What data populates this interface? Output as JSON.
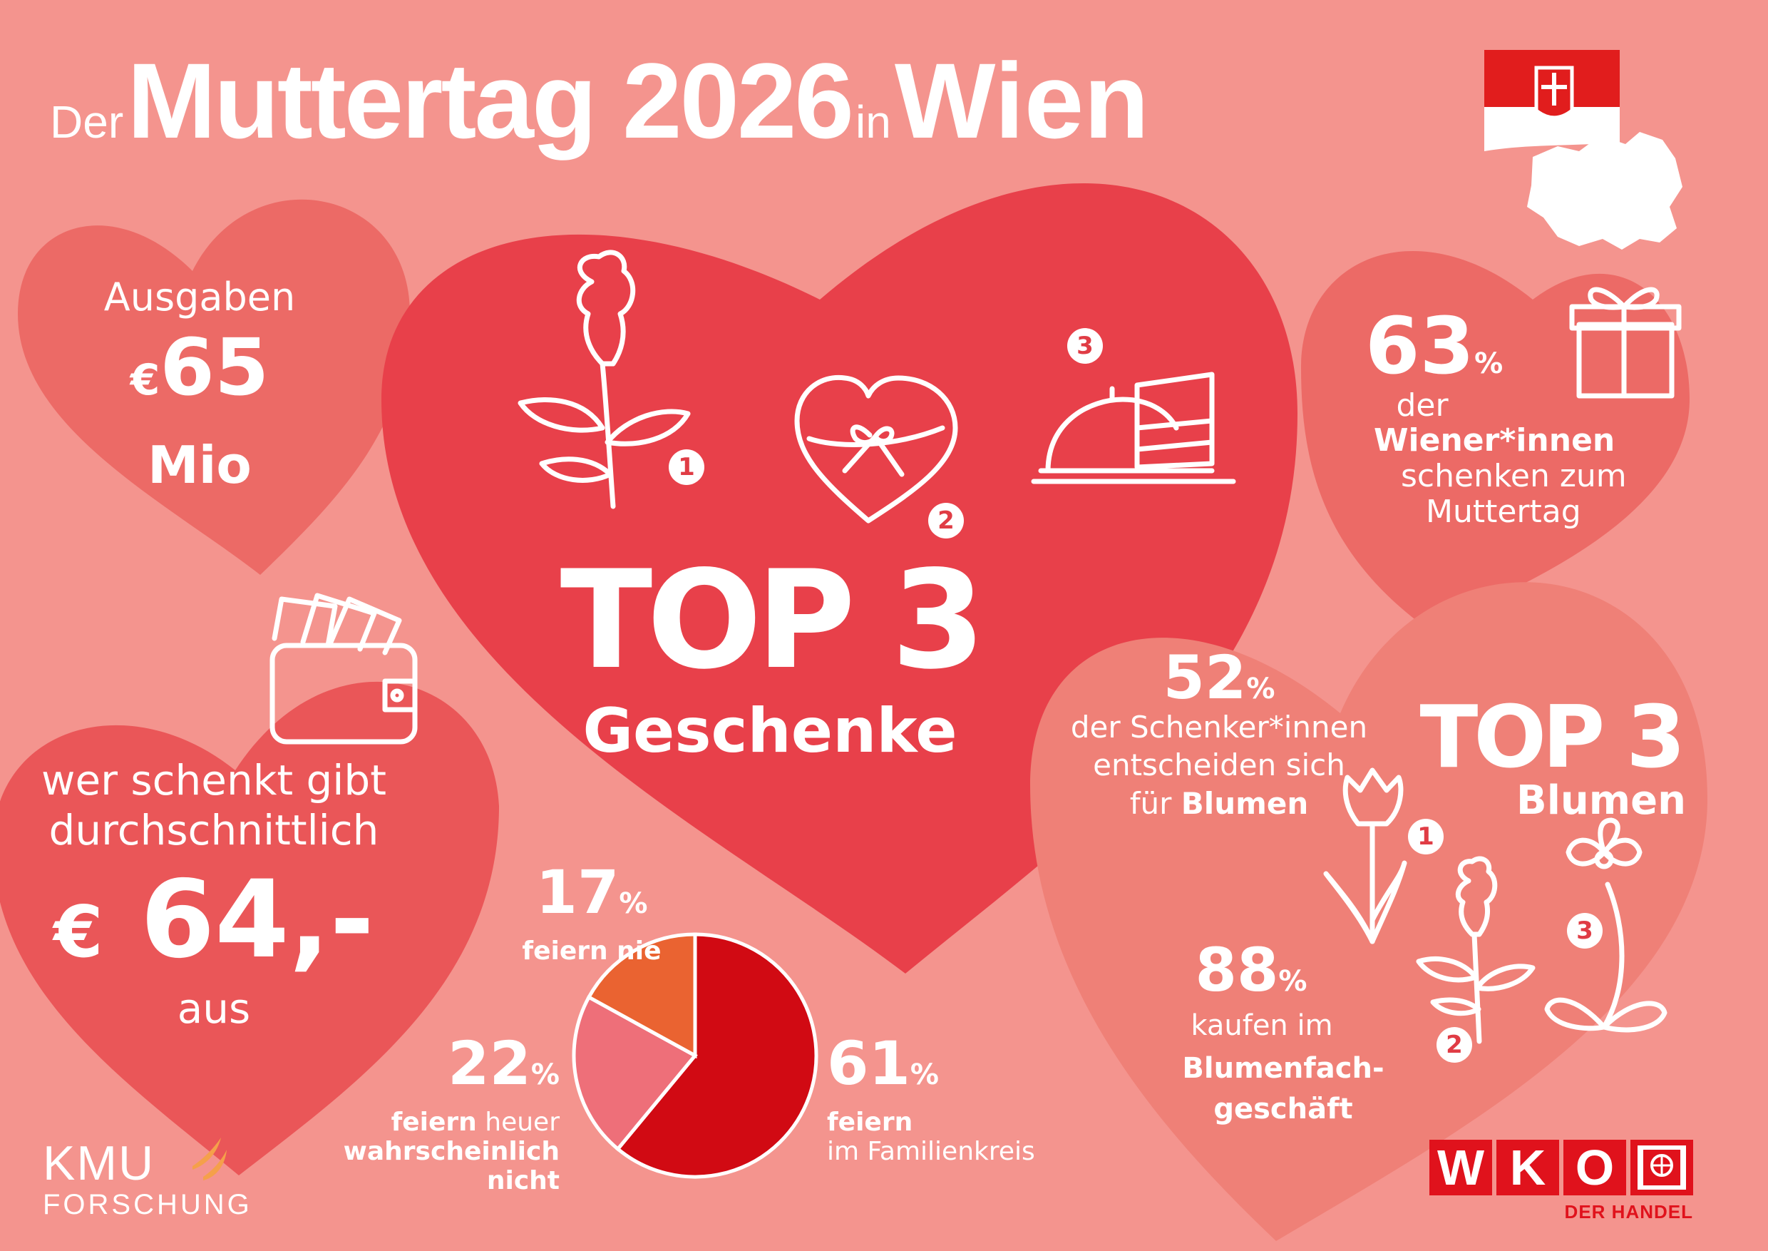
{
  "title": {
    "der": "Der",
    "main": "Muttertag 2026",
    "in": "in",
    "city": "Wien"
  },
  "colors": {
    "background": "#f4948e",
    "heart_dark": "#e8404a",
    "heart_mid": "#ec6a66",
    "heart_light": "#ef8077",
    "pie_family": "#d10a13",
    "pie_maybe": "#ee6f79",
    "pie_never": "#ea6331"
  },
  "spending": {
    "label": "Ausgaben",
    "currency": "€",
    "value": "65",
    "unit": "Mio"
  },
  "average": {
    "line1": "wer schenkt gibt",
    "line2": "durchschnittlich",
    "currency": "€",
    "value": "64,-",
    "line3": "aus"
  },
  "gifts": {
    "top": "TOP 3",
    "label": "Geschenke",
    "rank1": "1",
    "rank2": "2",
    "rank3": "3",
    "icons": [
      "rose-icon",
      "heart-gift-box-icon",
      "cake-dome-icon"
    ]
  },
  "share_giving": {
    "value": "63",
    "unit": "%",
    "line1": "der",
    "line2": "Wiener*innen",
    "line3": "schenken zum",
    "line4": "Muttertag"
  },
  "flowers": {
    "value": "52",
    "unit": "%",
    "line1": "der Schenker*innen",
    "line2": "entscheiden sich",
    "line3_a": "für",
    "line3_b": "Blumen",
    "top": "TOP 3",
    "label": "Blumen",
    "rank1": "1",
    "rank2": "2",
    "rank3": "3",
    "icons": [
      "tulip-icon",
      "rose-icon",
      "orchid-icon"
    ]
  },
  "florist": {
    "value": "88",
    "unit": "%",
    "line1": "kaufen im",
    "line2": "Blumenfach-",
    "line3": "geschäft"
  },
  "chart_data": {
    "type": "pie",
    "slices": [
      {
        "value": 61,
        "label_value": "61",
        "unit": "%",
        "label_bold": "feiern",
        "label_rest": "im Familienkreis"
      },
      {
        "value": 22,
        "label_value": "22",
        "unit": "%",
        "label_bold": "feiern",
        "label_rest": "heuer",
        "label_line2": "wahrscheinlich",
        "label_line3": "nicht"
      },
      {
        "value": 17,
        "label_value": "17",
        "unit": "%",
        "label_bold": "feiern nie",
        "label_rest": ""
      }
    ]
  },
  "logos": {
    "kmu_top": "KMU",
    "kmu_bottom": "FORSCHUNG",
    "wko": [
      "W",
      "K",
      "O"
    ],
    "wko_sub": "DER HANDEL"
  }
}
